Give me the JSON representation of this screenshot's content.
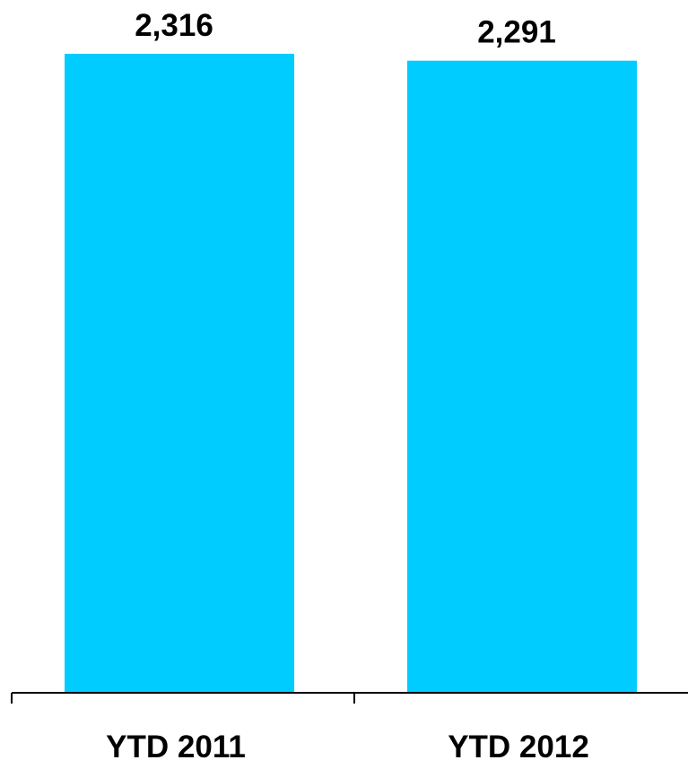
{
  "chart_data": {
    "type": "bar",
    "categories": [
      "YTD 2011",
      "YTD 2012"
    ],
    "values": [
      2316,
      2291
    ],
    "value_labels": [
      "2,316",
      "2,291"
    ],
    "title": "",
    "xlabel": "",
    "ylabel": "",
    "ylim": [
      0,
      2316
    ],
    "grid": false,
    "legend": "none",
    "bar_color": "#00CCFF",
    "axis_color": "#000000"
  }
}
